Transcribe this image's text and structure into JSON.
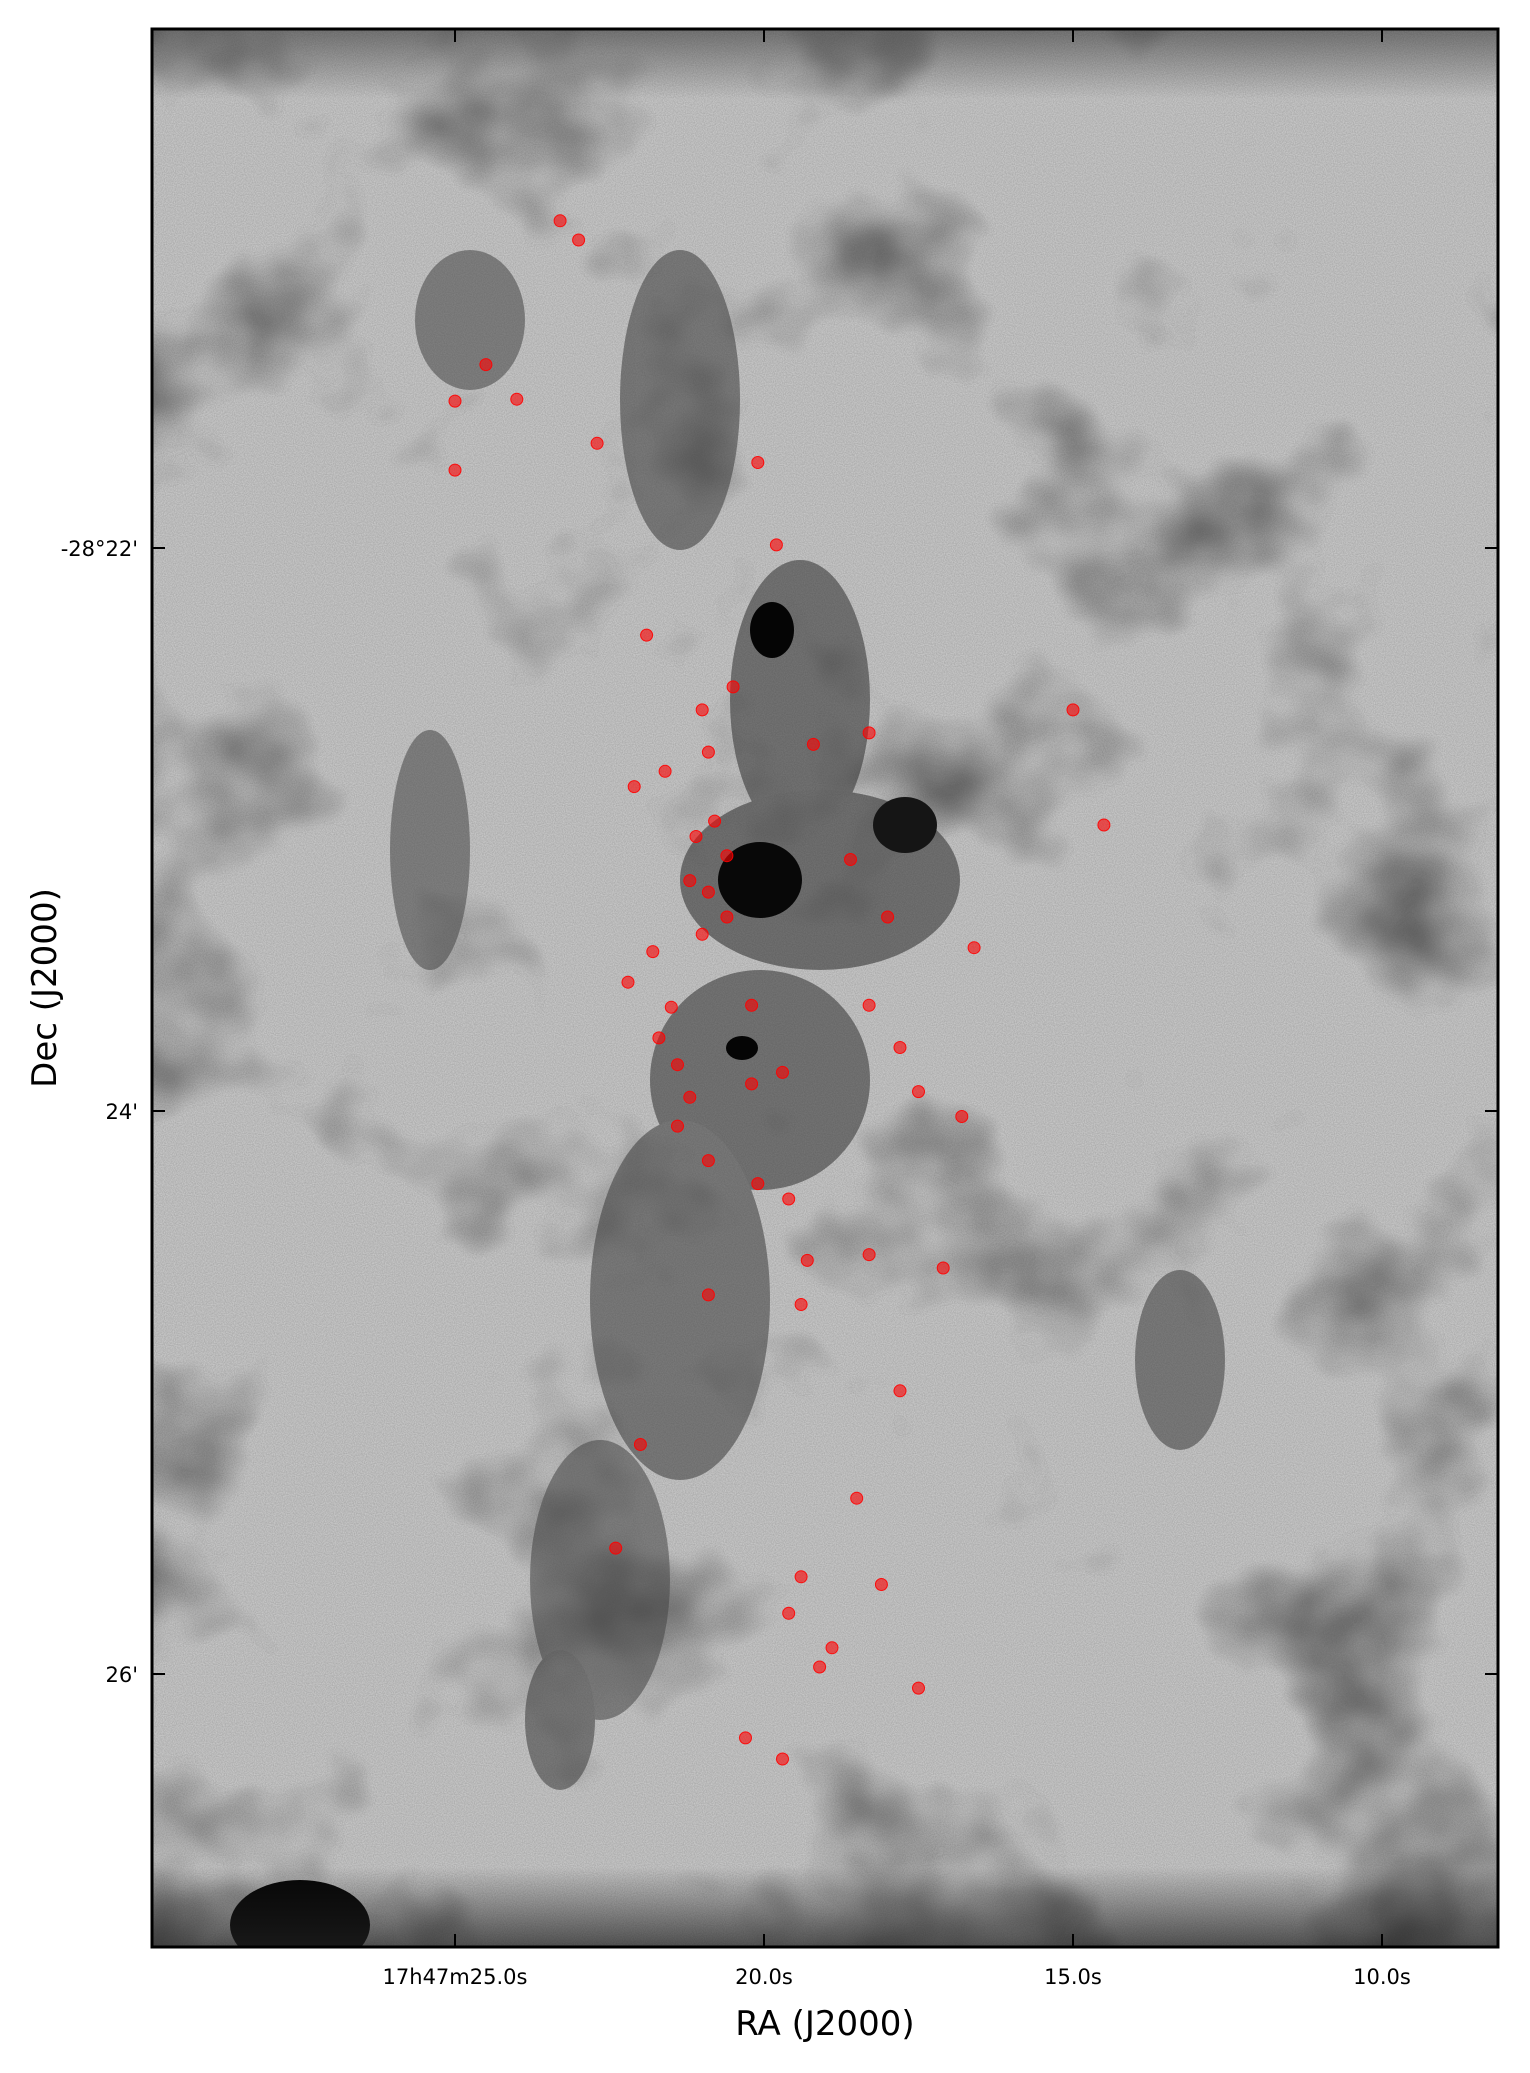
{
  "chart_data": {
    "type": "scatter",
    "background": "greyscale dust-extinction image",
    "xlabel": "RA (J2000)",
    "ylabel": "Dec (J2000)",
    "x_ticks": [
      "17h47m25.0s",
      "20.0s",
      "15.0s",
      "10.0s"
    ],
    "y_ticks": [
      "-28°22'",
      "24'",
      "26'"
    ],
    "grid": false,
    "marker_color": "#ff0000",
    "marker_opacity": 0.6,
    "series": [
      {
        "x": [
          23.3,
          23.0,
          24.5,
          24.0,
          22.7,
          25.0,
          25.0,
          21.9,
          22.1,
          20.8,
          20.6,
          20.9,
          21.0,
          21.8,
          22.2,
          21.5,
          21.7,
          21.4,
          19.7,
          20.2,
          21.2,
          21.4,
          20.9,
          20.1,
          19.6,
          19.3,
          19.4,
          20.9,
          20.2,
          20.6,
          21.2,
          21.6,
          21.0,
          19.2,
          18.3,
          18.6,
          18.0,
          18.3,
          17.8,
          17.5,
          16.8,
          15.0,
          14.5,
          16.6,
          17.1,
          18.3,
          17.8,
          18.5,
          19.4,
          19.6,
          18.1,
          17.5,
          20.3,
          22.4,
          22.0,
          19.1,
          18.9,
          19.7,
          20.1,
          19.8,
          20.5,
          20.9,
          21.1
        ],
        "y": [
          10.0,
          11.0,
          17.5,
          19.3,
          21.6,
          19.4,
          23.0,
          31.6,
          39.5,
          41.3,
          43.1,
          45.0,
          47.2,
          48.1,
          49.7,
          51.0,
          52.6,
          54.0,
          54.4,
          55.0,
          55.7,
          57.2,
          59.0,
          60.2,
          61.0,
          64.2,
          66.5,
          66.0,
          50.9,
          46.3,
          44.4,
          38.7,
          35.5,
          37.3,
          36.7,
          43.3,
          46.3,
          50.9,
          53.1,
          55.4,
          56.7,
          35.5,
          41.5,
          47.9,
          64.6,
          63.9,
          71.0,
          76.6,
          80.7,
          82.6,
          81.1,
          86.5,
          89.1,
          79.2,
          73.8,
          85.4,
          84.4,
          90.2,
          22.6,
          26.9,
          34.3,
          37.7,
          42.1
        ]
      }
    ]
  }
}
